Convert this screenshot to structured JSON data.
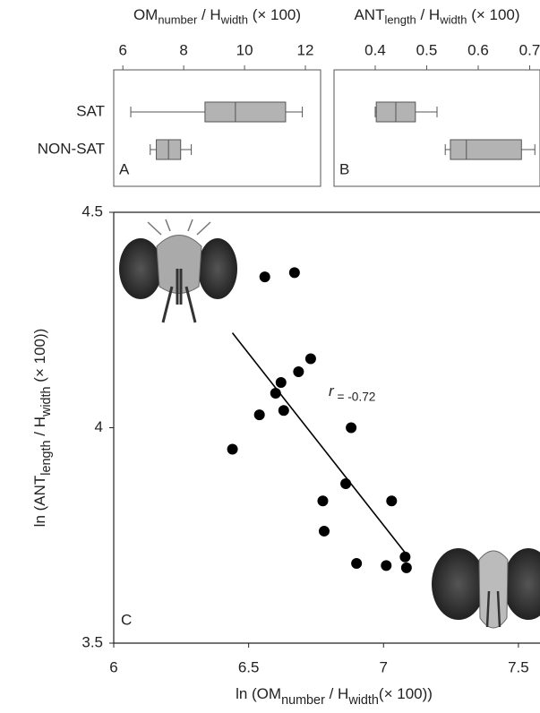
{
  "chart_data": [
    {
      "type": "box",
      "label": "A",
      "title": [
        "OM",
        "number",
        " / H",
        "width",
        " (× 100)"
      ],
      "categories": [
        "SAT",
        "NON-SAT"
      ],
      "boxes": [
        {
          "min": 6.26,
          "q1": 8.7,
          "median": 9.7,
          "q3": 11.35,
          "max": 11.9
        },
        {
          "min": 6.9,
          "q1": 7.1,
          "median": 7.5,
          "q3": 7.9,
          "max": 8.25
        }
      ],
      "color": "#b3b3b3",
      "xlim": [
        5.7,
        12.5
      ],
      "xticks": [
        6,
        8,
        10,
        12
      ]
    },
    {
      "type": "box",
      "label": "B",
      "title": [
        "ANT",
        "length",
        " / H",
        "width",
        " (× 100)"
      ],
      "boxes": [
        {
          "min": 0.4,
          "q1": 0.402,
          "median": 0.44,
          "q3": 0.478,
          "max": 0.52
        },
        {
          "min": 0.536,
          "q1": 0.546,
          "median": 0.577,
          "q3": 0.684,
          "max": 0.71
        }
      ],
      "color": "#b3b3b3",
      "xlim": [
        0.32,
        0.72
      ],
      "xticks": [
        0.4,
        0.5,
        0.6,
        0.7
      ]
    },
    {
      "type": "scatter",
      "label": "C",
      "xlabel": [
        "ln (OM",
        "number",
        " / H",
        "width",
        "(× 100))"
      ],
      "ylabel": [
        "ln (ANT",
        "length",
        " / H",
        "width",
        " (× 100))"
      ],
      "x": [
        6.56,
        6.67,
        6.73,
        6.685,
        6.62,
        6.6,
        6.63,
        6.54,
        6.88,
        6.44,
        6.86,
        6.775,
        7.03,
        6.78,
        7.08,
        6.9,
        7.01,
        7.085
      ],
      "y": [
        4.35,
        4.36,
        4.16,
        4.13,
        4.105,
        4.08,
        4.04,
        4.03,
        4.0,
        3.95,
        3.87,
        3.83,
        3.83,
        3.76,
        3.7,
        3.685,
        3.68,
        3.675
      ],
      "fit": {
        "x": [
          6.44,
          7.08
        ],
        "y": [
          4.22,
          3.71
        ]
      },
      "annotation": [
        "r",
        " = -0.72"
      ],
      "color": "#000000",
      "xlim": [
        6,
        7.58
      ],
      "ylim": [
        3.5,
        4.5
      ],
      "xticks": [
        6,
        6.5,
        7,
        7.5
      ],
      "yticks": [
        3.5,
        4,
        4.5
      ]
    }
  ]
}
